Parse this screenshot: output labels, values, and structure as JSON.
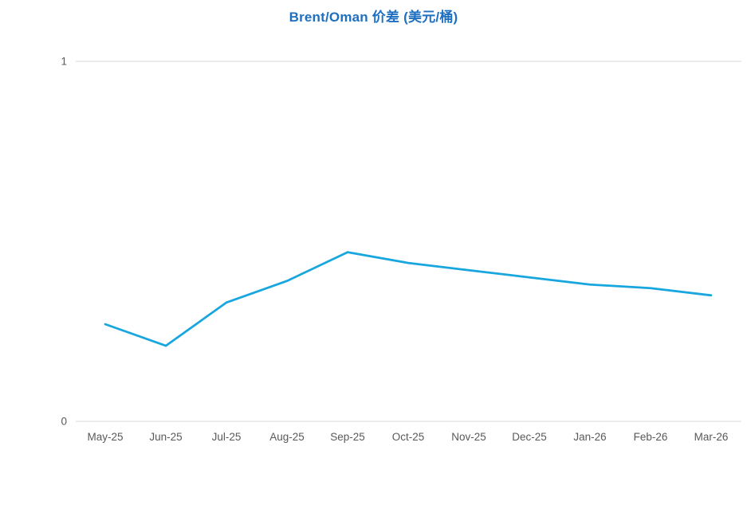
{
  "page": {
    "background_color": "#FFFFFF"
  },
  "chart_data": {
    "type": "line",
    "title": "Brent/Oman 价差 (美元/桶)",
    "title_color": "#1F6FC0",
    "categories": [
      "May-25",
      "Jun-25",
      "Jul-25",
      "Aug-25",
      "Sep-25",
      "Oct-25",
      "Nov-25",
      "Dec-25",
      "Jan-26",
      "Feb-26",
      "Mar-26"
    ],
    "values": [
      0.27,
      0.21,
      0.33,
      0.39,
      0.47,
      0.44,
      0.42,
      0.4,
      0.38,
      0.37,
      0.35
    ],
    "xlabel": "",
    "ylabel": "",
    "ylim": [
      0,
      1
    ],
    "y_ticks": [
      {
        "value": 1,
        "label": "1"
      },
      {
        "value": 0,
        "label": "0"
      }
    ],
    "grid": "horizontal-major-only",
    "legend": "none",
    "line_color": "#18A6DF",
    "gridline_color": "#D9D9D9",
    "axis_label_color": "#595959"
  }
}
